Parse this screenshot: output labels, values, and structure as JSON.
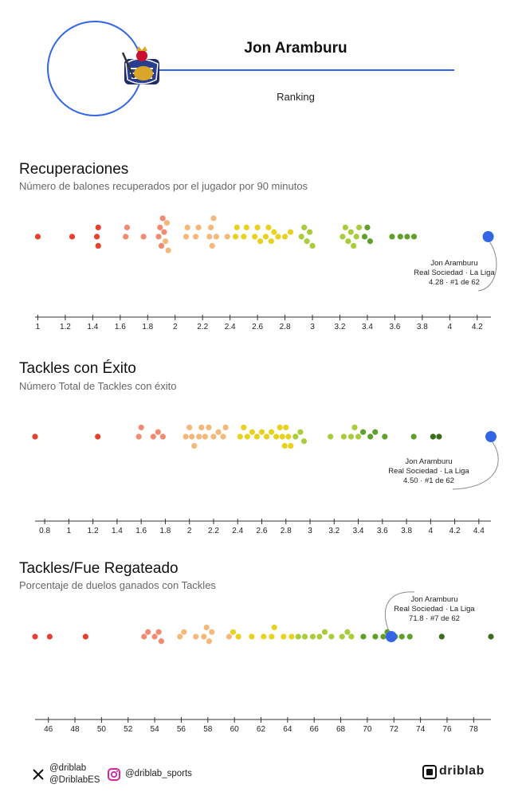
{
  "player": {
    "name": "Jon Aramburu",
    "subtitle": "Ranking",
    "accent": "#3366e6"
  },
  "chart_data": [
    {
      "type": "scatter",
      "title": "Recuperaciones",
      "subtitle": "Número de balones recuperados por el jugador por 90 minutos",
      "xlim": [
        0.98,
        4.3
      ],
      "ticks": [
        1,
        1.2,
        1.4,
        1.6,
        1.8,
        2,
        2.2,
        2.4,
        2.6,
        2.8,
        3,
        3.2,
        3.4,
        3.6,
        3.8,
        4,
        4.2
      ],
      "values": [
        1.0,
        1.25,
        1.43,
        1.44,
        1.44,
        1.64,
        1.65,
        1.77,
        1.88,
        1.89,
        1.9,
        1.91,
        1.92,
        1.93,
        1.94,
        1.95,
        2.08,
        2.09,
        2.15,
        2.17,
        2.25,
        2.26,
        2.27,
        2.28,
        2.3,
        2.38,
        2.44,
        2.45,
        2.5,
        2.52,
        2.58,
        2.6,
        2.62,
        2.66,
        2.68,
        2.7,
        2.72,
        2.75,
        2.8,
        2.84,
        2.92,
        2.94,
        2.96,
        2.98,
        3.0,
        3.22,
        3.24,
        3.26,
        3.28,
        3.3,
        3.32,
        3.34,
        3.38,
        3.4,
        3.42,
        3.58,
        3.64,
        3.69,
        3.74,
        4.28
      ],
      "highlight": {
        "value": 4.28,
        "label_name": "Jon Aramburu",
        "label_team": "Real Sociedad · La Liga",
        "label_rank": "4.28 · #1 de 62"
      }
    },
    {
      "type": "scatter",
      "title": "Tackles con Éxito",
      "subtitle": "Número Total de Tackles con éxito",
      "xlim": [
        0.72,
        4.5
      ],
      "ticks": [
        0.8,
        1,
        1.2,
        1.4,
        1.6,
        1.8,
        2,
        2.2,
        2.4,
        2.6,
        2.8,
        3,
        3.2,
        3.4,
        3.6,
        3.8,
        4,
        4.2,
        4.4
      ],
      "values": [
        0.72,
        1.24,
        1.58,
        1.6,
        1.7,
        1.74,
        1.78,
        1.97,
        2.0,
        2.02,
        2.04,
        2.08,
        2.1,
        2.13,
        2.16,
        2.2,
        2.24,
        2.28,
        2.3,
        2.42,
        2.45,
        2.48,
        2.52,
        2.56,
        2.6,
        2.64,
        2.68,
        2.72,
        2.75,
        2.77,
        2.79,
        2.8,
        2.82,
        2.84,
        2.88,
        2.92,
        2.95,
        3.17,
        3.28,
        3.34,
        3.37,
        3.4,
        3.44,
        3.5,
        3.54,
        3.62,
        3.86,
        4.02,
        4.07,
        4.5
      ],
      "highlight": {
        "value": 4.5,
        "label_name": "Jon Aramburu",
        "label_team": "Real Sociedad · La Liga",
        "label_rank": "4.50 · #1 de 62"
      }
    },
    {
      "type": "scatter",
      "title": "Tackles/Fue Regateado",
      "subtitle": "Porcentaje de duelos ganados con Tackles",
      "xlim": [
        45.0,
        79.3
      ],
      "ticks": [
        46,
        48,
        50,
        52,
        54,
        56,
        58,
        60,
        62,
        64,
        66,
        68,
        70,
        72,
        74,
        76,
        78
      ],
      "values": [
        45.0,
        46.1,
        48.8,
        53.2,
        53.5,
        54.0,
        54.3,
        54.5,
        55.9,
        56.2,
        57.1,
        57.7,
        57.9,
        58.1,
        58.3,
        59.6,
        59.9,
        60.3,
        61.3,
        62.2,
        62.8,
        63.0,
        63.7,
        64.3,
        64.8,
        65.3,
        65.9,
        66.4,
        66.8,
        67.3,
        68.1,
        68.5,
        68.8,
        69.7,
        70.6,
        71.2,
        71.5,
        72.1,
        72.6,
        73.2,
        75.6,
        79.3,
        71.8
      ],
      "highlight": {
        "value": 71.8,
        "label_name": "Jon Aramburu",
        "label_team": "Real Sociedad · La Liga",
        "label_rank": "71.8 · #7 de 62"
      }
    }
  ],
  "footer": {
    "twitter_1": "@driblab",
    "twitter_2": "@DriblabES",
    "instagram": "@driblab_sports",
    "brand": "driblab"
  }
}
